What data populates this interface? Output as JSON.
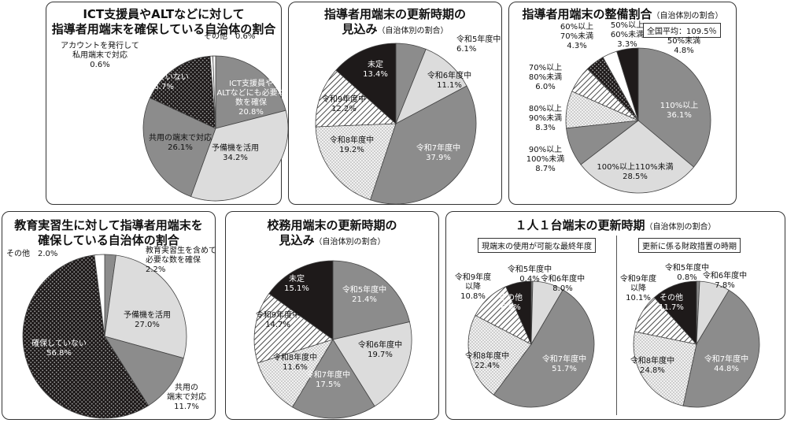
{
  "colors": {
    "dark": "#1e1a1a",
    "mid": "#8c8c8c",
    "light": "#dcdcdc",
    "white": "#ffffff",
    "dot_bg": "#f1f1f1",
    "hatch_bg": "#ffffff"
  },
  "panels": {
    "p1": {
      "title_line1": "ICT支援員やALTなどに対して",
      "title_line2": "指導者用端末を確保している自治体の割合"
    },
    "p2": {
      "title_line1": "指導者用端末の更新時期の",
      "title_line2": "見込み",
      "title_sub": "（自治体別の割合）"
    },
    "p3": {
      "title_line1": "指導者用端末の整備割合",
      "title_sub": "（自治体別の割合）",
      "note": "全国平均：109.5％"
    },
    "p4": {
      "title_line1": "教育実習生に対して指導者用端末を",
      "title_line2": "確保している自治体の割合"
    },
    "p5": {
      "title_line1": "校務用端末の更新時期の",
      "title_line2": "見込み",
      "title_sub": "（自治体別の割合）"
    },
    "p6": {
      "title_line1": "１人１台端末の更新時期",
      "title_sub": "（自治体別の割合）",
      "left_box": "現端末の使用が可能な最終年度",
      "right_box": "更新に係る財政措置の時期"
    }
  },
  "chart_data": [
    {
      "id": "p1",
      "type": "pie",
      "title": "ICT支援員やALTなどに対して指導者用端末を確保している自治体の割合",
      "slices": [
        {
          "name": "ICT支援員やALTなどにも必要な数を確保",
          "value": 20.8,
          "fill": "mid",
          "text": "light"
        },
        {
          "name": "予備機を活用",
          "value": 34.2,
          "fill": "light",
          "text": "dark"
        },
        {
          "name": "共用の端末で対応",
          "value": 26.1,
          "fill": "mid",
          "text": "dark"
        },
        {
          "name": "確保していない",
          "value": 16.7,
          "fill": "dotdark",
          "text": "white"
        },
        {
          "name": "アカウントを発行して私用端末で対応",
          "value": 0.6,
          "fill": "white",
          "text": "dark"
        },
        {
          "name": "その他",
          "value": 0.6,
          "fill": "white",
          "text": "dark"
        }
      ],
      "labels": [
        {
          "lines": [
            "ICT支援員や",
            "ALTなどにも必要な",
            "数を確保",
            "20.8%"
          ],
          "color": "white"
        },
        {
          "lines": [
            "予備機を活用",
            "34.2%"
          ],
          "color": "dark"
        },
        {
          "lines": [
            "共用の端末で対応",
            "26.1%"
          ],
          "color": "dark"
        },
        {
          "lines": [
            "確保していない",
            "16.7%"
          ],
          "color": "white"
        },
        {
          "lines": [
            "アカウントを発行して",
            "私用端末で対応",
            "0.6%"
          ],
          "color": "dark"
        },
        {
          "lines": [
            "その他　0.6%"
          ],
          "color": "dark"
        }
      ]
    },
    {
      "id": "p2",
      "type": "pie",
      "title": "指導者用端末の更新時期の見込み",
      "slices": [
        {
          "name": "令和5年度中",
          "value": 6.1,
          "fill": "mid"
        },
        {
          "name": "令和6年度中",
          "value": 11.1,
          "fill": "light"
        },
        {
          "name": "令和7年度中",
          "value": 37.9,
          "fill": "mid"
        },
        {
          "name": "令和8年度中",
          "value": 19.2,
          "fill": "dotlight"
        },
        {
          "name": "令和9年度中",
          "value": 12.2,
          "fill": "hatch"
        },
        {
          "name": "未定",
          "value": 13.4,
          "fill": "dark"
        }
      ],
      "labels": [
        {
          "lines": [
            "令和5年度中",
            "6.1%"
          ],
          "color": "dark"
        },
        {
          "lines": [
            "令和6年度中",
            "11.1%"
          ],
          "color": "dark"
        },
        {
          "lines": [
            "令和7年度中",
            "37.9%"
          ],
          "color": "white"
        },
        {
          "lines": [
            "令和8年度中",
            "19.2%"
          ],
          "color": "dark"
        },
        {
          "lines": [
            "令和9年度中",
            "12.2%"
          ],
          "color": "dark"
        },
        {
          "lines": [
            "未定",
            "13.4%"
          ],
          "color": "white"
        }
      ]
    },
    {
      "id": "p3",
      "type": "pie",
      "title": "指導者用端末の整備割合",
      "slices": [
        {
          "name": "110%以上",
          "value": 36.1,
          "fill": "mid"
        },
        {
          "name": "100%以上110%未満",
          "value": 28.5,
          "fill": "light"
        },
        {
          "name": "90%以上100%未満",
          "value": 8.7,
          "fill": "mid"
        },
        {
          "name": "80%以上90%未満",
          "value": 8.3,
          "fill": "dotlight"
        },
        {
          "name": "70%以上80%未満",
          "value": 6.0,
          "fill": "hatch"
        },
        {
          "name": "60%以上70%未満",
          "value": 4.3,
          "fill": "dotdark"
        },
        {
          "name": "50%以上60%未満",
          "value": 3.3,
          "fill": "white"
        },
        {
          "name": "50%未満",
          "value": 4.8,
          "fill": "dark"
        }
      ],
      "labels": [
        {
          "lines": [
            "110%以上",
            "36.1%"
          ],
          "color": "white"
        },
        {
          "lines": [
            "100%以上110%未満",
            "28.5%"
          ],
          "color": "dark"
        },
        {
          "lines": [
            "90%以上",
            "100%未満",
            "8.7%"
          ],
          "color": "dark"
        },
        {
          "lines": [
            "80%以上",
            "90%未満",
            "8.3%"
          ],
          "color": "dark"
        },
        {
          "lines": [
            "70%以上",
            "80%未満",
            "6.0%"
          ],
          "color": "dark"
        },
        {
          "lines": [
            "60%以上",
            "70%未満",
            "4.3%"
          ],
          "color": "dark"
        },
        {
          "lines": [
            "50%以上",
            "60%未満",
            "3.3%"
          ],
          "color": "dark"
        },
        {
          "lines": [
            "50%未満",
            "4.8%"
          ],
          "color": "dark"
        }
      ]
    },
    {
      "id": "p4",
      "type": "pie",
      "title": "教育実習生に対して指導者用端末を確保している自治体の割合",
      "slices": [
        {
          "name": "教育実習生を含めて必要な数を確保",
          "value": 2.2,
          "fill": "mid"
        },
        {
          "name": "予備機を活用",
          "value": 27.0,
          "fill": "light"
        },
        {
          "name": "共用の端末で対応",
          "value": 11.7,
          "fill": "mid"
        },
        {
          "name": "確保していない",
          "value": 56.8,
          "fill": "dotdark"
        },
        {
          "name": "その他",
          "value": 2.0,
          "fill": "white"
        }
      ],
      "labels": [
        {
          "lines": [
            "教育実習生を含めて",
            "必要な数を確保",
            "2.2%"
          ],
          "color": "dark"
        },
        {
          "lines": [
            "予備機を活用",
            "27.0%"
          ],
          "color": "dark"
        },
        {
          "lines": [
            "共用の",
            "端末で対応",
            "11.7%"
          ],
          "color": "dark"
        },
        {
          "lines": [
            "確保していない",
            "56.8%"
          ],
          "color": "white"
        },
        {
          "lines": [
            "その他　2.0%"
          ],
          "color": "dark"
        }
      ]
    },
    {
      "id": "p5",
      "type": "pie",
      "title": "校務用端末の更新時期の見込み",
      "slices": [
        {
          "name": "令和5年度中",
          "value": 21.4,
          "fill": "mid"
        },
        {
          "name": "令和6年度中",
          "value": 19.7,
          "fill": "light"
        },
        {
          "name": "令和7年度中",
          "value": 17.5,
          "fill": "mid"
        },
        {
          "name": "令和8年度中",
          "value": 11.6,
          "fill": "dotlight"
        },
        {
          "name": "令和9年度中",
          "value": 14.7,
          "fill": "hatch"
        },
        {
          "name": "未定",
          "value": 15.1,
          "fill": "dark"
        }
      ],
      "labels": [
        {
          "lines": [
            "令和5年度中",
            "21.4%"
          ],
          "color": "white"
        },
        {
          "lines": [
            "令和6年度中",
            "19.7%"
          ],
          "color": "dark"
        },
        {
          "lines": [
            "令和7年度中",
            "17.5%"
          ],
          "color": "white"
        },
        {
          "lines": [
            "令和8年度中",
            "11.6%"
          ],
          "color": "dark"
        },
        {
          "lines": [
            "令和9年度中",
            "14.7%"
          ],
          "color": "dark"
        },
        {
          "lines": [
            "未定",
            "15.1%"
          ],
          "color": "white"
        }
      ]
    },
    {
      "id": "p6a",
      "type": "pie",
      "title": "現端末の使用が可能な最終年度",
      "slices": [
        {
          "name": "令和5年度中",
          "value": 0.4,
          "fill": "mid"
        },
        {
          "name": "令和6年度中",
          "value": 8.0,
          "fill": "light"
        },
        {
          "name": "令和7年度中",
          "value": 51.7,
          "fill": "mid"
        },
        {
          "name": "令和8年度中",
          "value": 22.4,
          "fill": "dotlight"
        },
        {
          "name": "令和9年度以降",
          "value": 10.8,
          "fill": "hatch"
        },
        {
          "name": "その他",
          "value": 6.6,
          "fill": "dark"
        }
      ],
      "labels": [
        {
          "lines": [
            "令和5年度中",
            "0.4%"
          ],
          "color": "dark"
        },
        {
          "lines": [
            "令和6年度中",
            "8.0%"
          ],
          "color": "dark"
        },
        {
          "lines": [
            "令和7年度中",
            "51.7%"
          ],
          "color": "white"
        },
        {
          "lines": [
            "令和8年度中",
            "22.4%"
          ],
          "color": "dark"
        },
        {
          "lines": [
            "令和9年度",
            "以降",
            "10.8%"
          ],
          "color": "dark"
        },
        {
          "lines": [
            "その他",
            "6.6%"
          ],
          "color": "white"
        }
      ]
    },
    {
      "id": "p6b",
      "type": "pie",
      "title": "更新に係る財政措置の時期",
      "slices": [
        {
          "name": "令和5年度中",
          "value": 0.8,
          "fill": "mid"
        },
        {
          "name": "令和6年度中",
          "value": 7.8,
          "fill": "light"
        },
        {
          "name": "令和7年度中",
          "value": 44.8,
          "fill": "mid"
        },
        {
          "name": "令和8年度中",
          "value": 24.8,
          "fill": "dotlight"
        },
        {
          "name": "令和9年度以降",
          "value": 10.1,
          "fill": "hatch"
        },
        {
          "name": "その他",
          "value": 11.7,
          "fill": "dark"
        }
      ],
      "labels": [
        {
          "lines": [
            "令和5年度中",
            "0.8%"
          ],
          "color": "dark"
        },
        {
          "lines": [
            "令和6年度中",
            "7.8%"
          ],
          "color": "dark"
        },
        {
          "lines": [
            "令和7年度中",
            "44.8%"
          ],
          "color": "white"
        },
        {
          "lines": [
            "令和8年度中",
            "24.8%"
          ],
          "color": "dark"
        },
        {
          "lines": [
            "令和9年度",
            "以降",
            "10.1%"
          ],
          "color": "dark"
        },
        {
          "lines": [
            "その他",
            "11.7%"
          ],
          "color": "white"
        }
      ]
    }
  ]
}
